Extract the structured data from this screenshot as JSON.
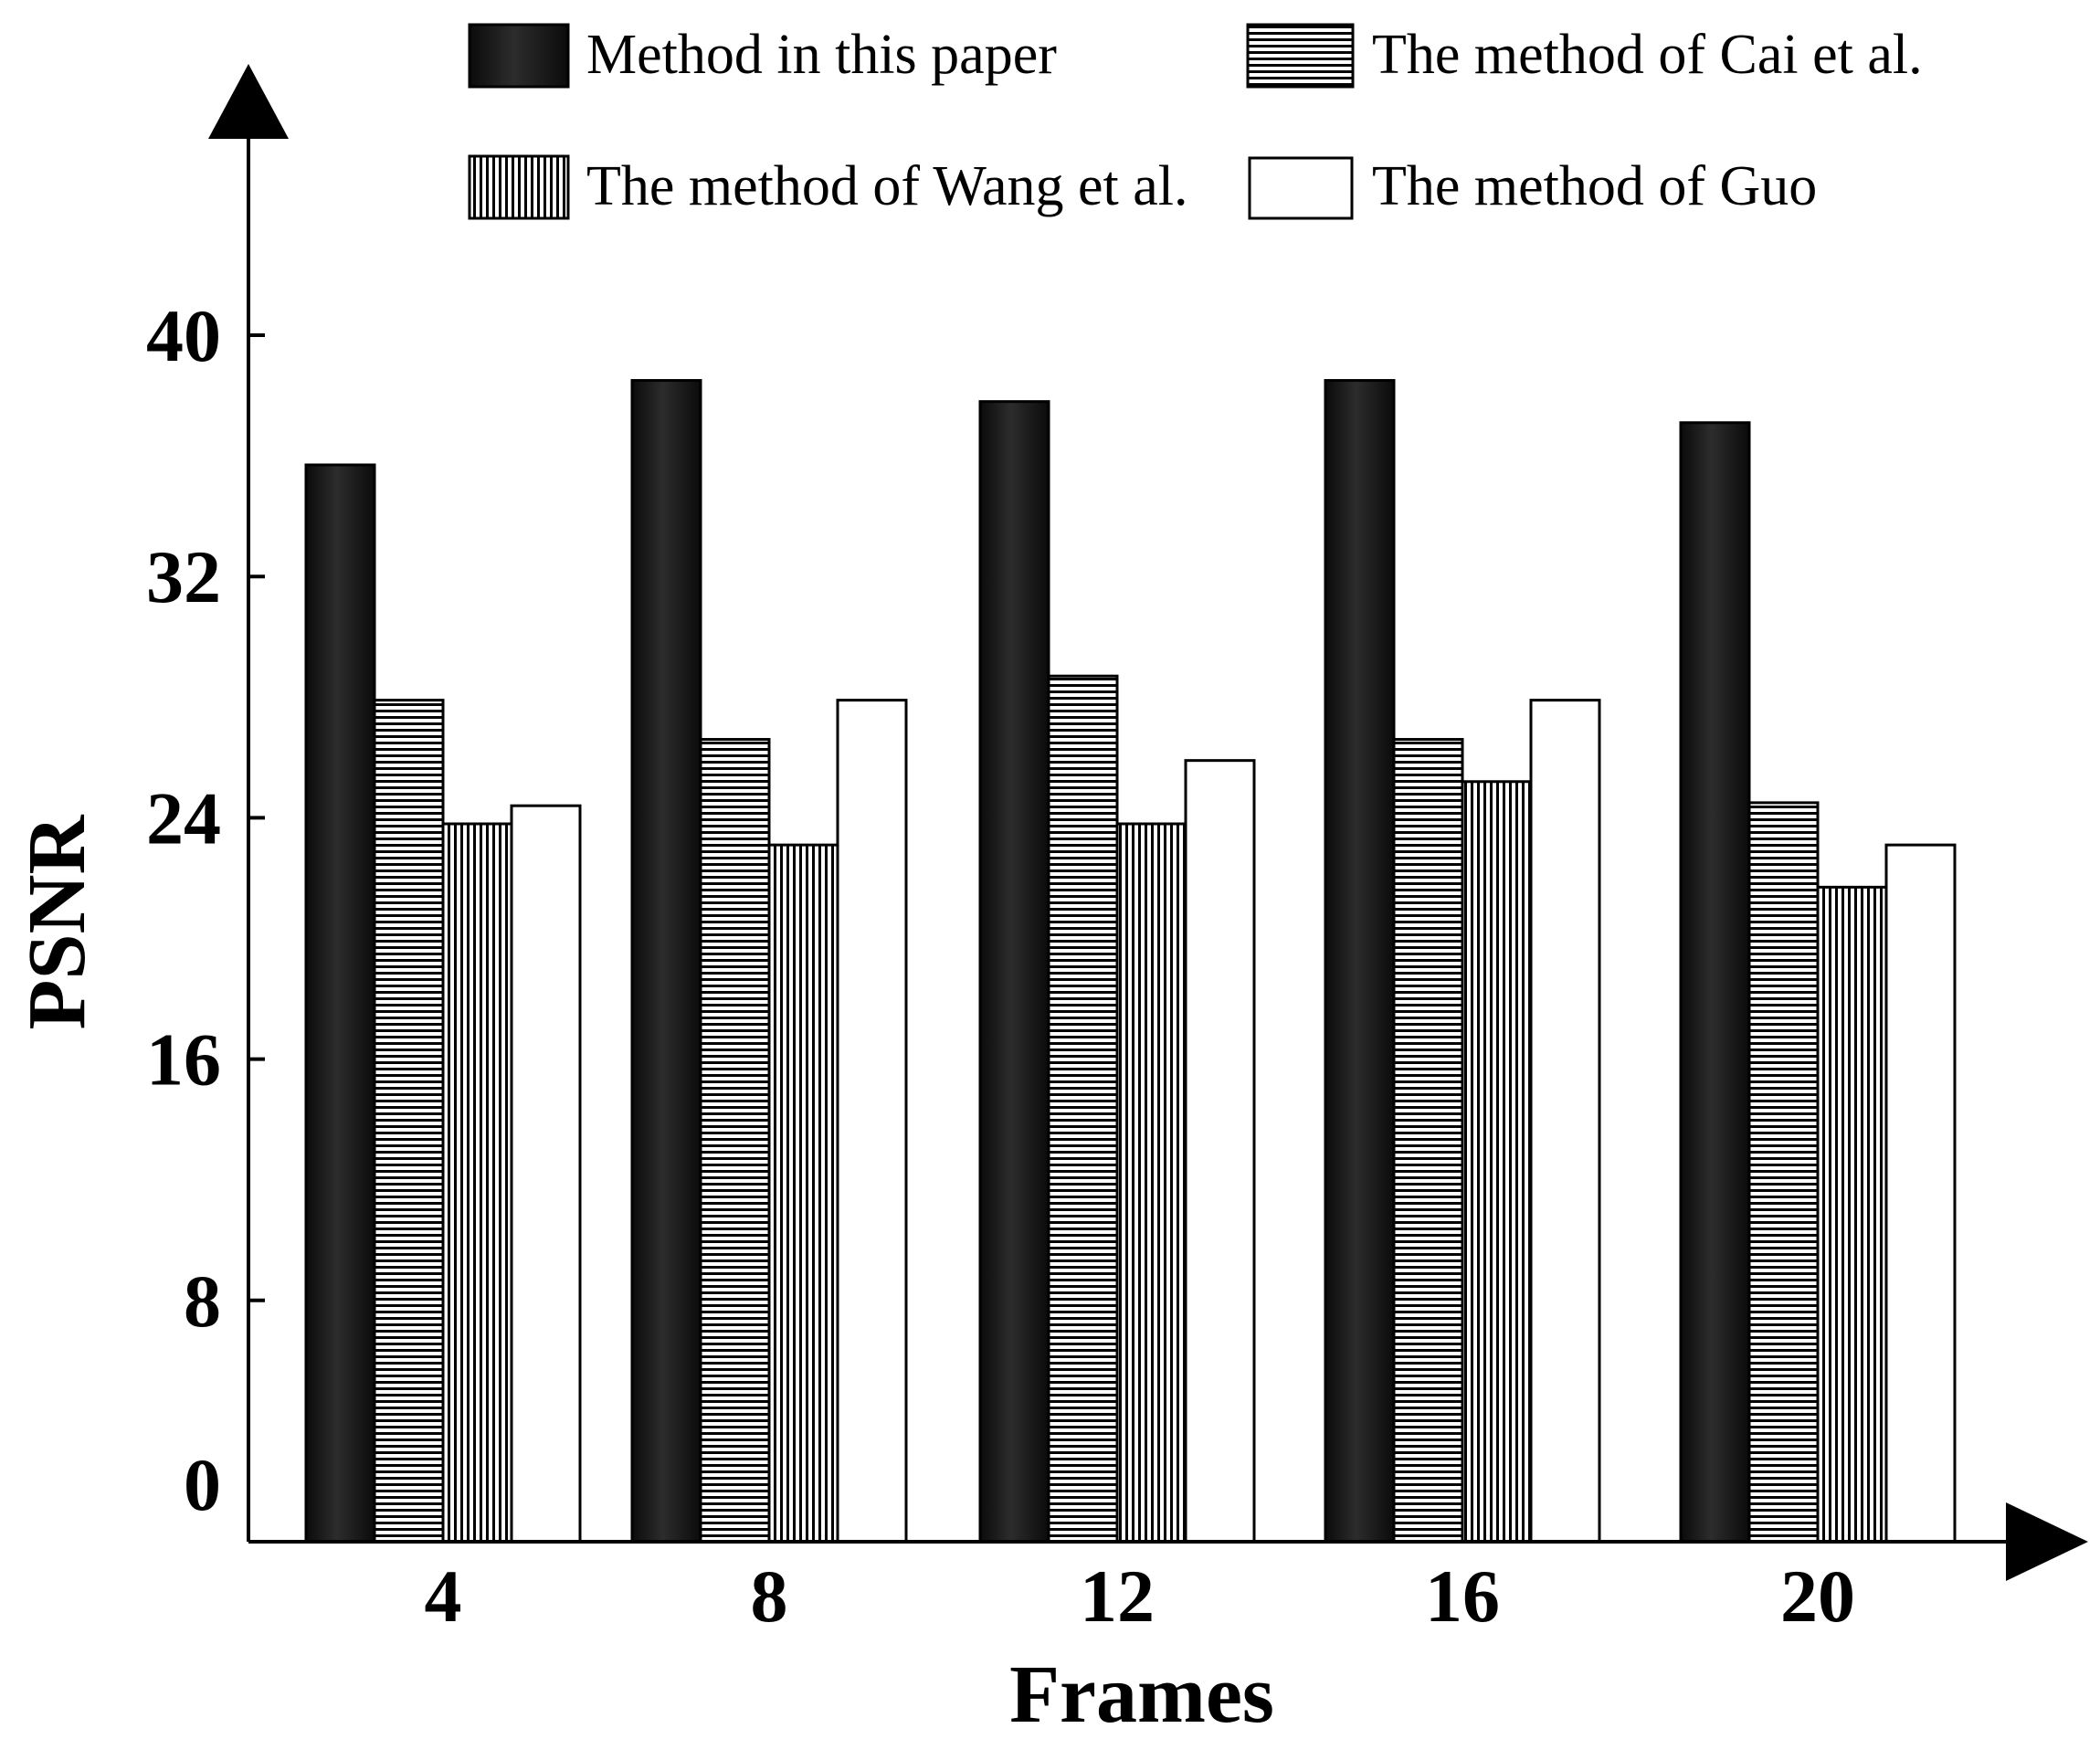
{
  "chart_data": {
    "type": "bar",
    "xlabel": "Frames",
    "ylabel": "PSNR",
    "categories": [
      "4",
      "8",
      "12",
      "16",
      "20"
    ],
    "ylim": [
      0,
      40
    ],
    "yticks": [
      "0",
      "8",
      "16",
      "24",
      "32",
      "40"
    ],
    "grid": false,
    "legend_position": "top",
    "series": [
      {
        "name": "Method in this paper",
        "pattern": "dark-gradient",
        "color": "#111111",
        "values": [
          35.7,
          38.5,
          37.8,
          38.5,
          37.1
        ]
      },
      {
        "name": "The method of Cai et al.",
        "pattern": "horizontal-stripes",
        "color": "#000000",
        "values": [
          27.9,
          26.6,
          28.7,
          26.6,
          24.5
        ]
      },
      {
        "name": "The method of Wang et al.",
        "pattern": "vertical-stripes",
        "color": "#000000",
        "values": [
          23.8,
          23.1,
          23.8,
          25.2,
          21.7
        ]
      },
      {
        "name": "The method of Guo",
        "pattern": "white",
        "color": "#ffffff",
        "values": [
          24.4,
          27.9,
          25.9,
          27.9,
          23.1
        ]
      }
    ]
  }
}
